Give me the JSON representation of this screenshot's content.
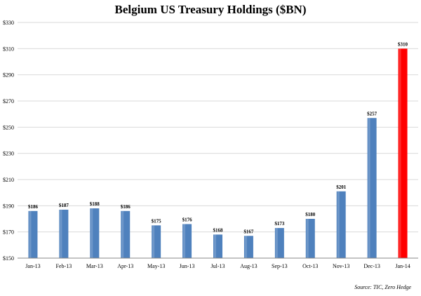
{
  "chart_data": {
    "type": "bar",
    "title": "Belgium US Treasury Holdings ($BN)",
    "source": "Source: TIC, Zero Hedge",
    "categories": [
      "Jan-13",
      "Feb-13",
      "Mar-13",
      "Apr-13",
      "May-13",
      "Jun-13",
      "Jul-13",
      "Aug-13",
      "Sep-13",
      "Oct-13",
      "Nov-13",
      "Dec-13",
      "Jan-14"
    ],
    "values": [
      186,
      187,
      188,
      186,
      175,
      176,
      168,
      167,
      173,
      180,
      201,
      257,
      310
    ],
    "value_labels": [
      "$186",
      "$187",
      "$188",
      "$186",
      "$175",
      "$176",
      "$168",
      "$167",
      "$173",
      "$180",
      "$201",
      "$257",
      "$310"
    ],
    "ylim": [
      150,
      330
    ],
    "y_ticks": [
      150,
      170,
      190,
      210,
      230,
      250,
      270,
      290,
      310,
      330
    ],
    "y_tick_labels": [
      "$150",
      "$170",
      "$190",
      "$210",
      "$230",
      "$250",
      "$270",
      "$290",
      "$310",
      "$330"
    ],
    "grid": true,
    "colors": {
      "bar": "#4f81bd",
      "highlight_bar": "#ff0000",
      "grid": "#d9d9d9",
      "axis": "#888888"
    },
    "highlight_index": 12
  }
}
